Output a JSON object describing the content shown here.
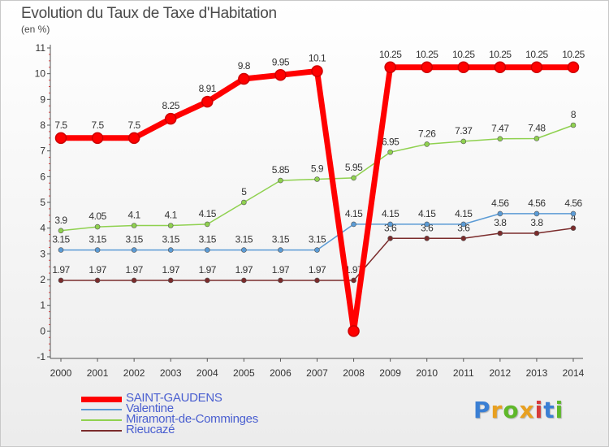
{
  "title": "Evolution du Taux de Taxe d'Habitation",
  "subtitle": "(en %)",
  "logo": {
    "text": "Proxiti",
    "colors": [
      "#3a7fd4",
      "#e8a020",
      "#5fb82a",
      "#e8a020",
      "#d63a3a",
      "#3a7fd4",
      "#5fb82a"
    ]
  },
  "chart_data": {
    "type": "line",
    "title": "Evolution du Taux de Taxe d'Habitation",
    "ylabel": "(en %)",
    "xlabel": "",
    "x": [
      2000,
      2001,
      2002,
      2003,
      2004,
      2005,
      2006,
      2007,
      2008,
      2009,
      2010,
      2011,
      2012,
      2013,
      2014
    ],
    "ylim": [
      -1,
      11
    ],
    "yticks": [
      -1,
      0,
      1,
      2,
      3,
      4,
      5,
      6,
      7,
      8,
      9,
      10,
      11
    ],
    "grid": false,
    "legend": "bottom-left",
    "series": [
      {
        "name": "SAINT-GAUDENS",
        "color": "#ff0000",
        "values": [
          7.5,
          7.5,
          7.5,
          8.25,
          8.91,
          9.8,
          9.95,
          10.1,
          0,
          10.25,
          10.25,
          10.25,
          10.25,
          10.25,
          10.25
        ],
        "labels": [
          "7.5",
          "7.5",
          "7.5",
          "8.25",
          "8.91",
          "9.8",
          "9.95",
          "10.1",
          "",
          "10.25",
          "10.25",
          "10.25",
          "10.25",
          "10.25",
          "10.25"
        ]
      },
      {
        "name": "Valentine",
        "color": "#5b9bd5",
        "values": [
          3.15,
          3.15,
          3.15,
          3.15,
          3.15,
          3.15,
          3.15,
          3.15,
          4.15,
          4.15,
          4.15,
          4.15,
          4.56,
          4.56,
          4.56
        ],
        "labels": [
          "3.15",
          "3.15",
          "3.15",
          "3.15",
          "3.15",
          "3.15",
          "3.15",
          "3.15",
          "4.15",
          "4.15",
          "4.15",
          "4.15",
          "4.56",
          "4.56",
          "4.56"
        ]
      },
      {
        "name": "Miramont-de-Comminges",
        "color": "#8fd14f",
        "values": [
          3.9,
          4.05,
          4.1,
          4.1,
          4.15,
          5,
          5.85,
          5.9,
          5.95,
          6.95,
          7.26,
          7.37,
          7.47,
          7.48,
          8
        ],
        "labels": [
          "3.9",
          "4.05",
          "4.1",
          "4.1",
          "4.15",
          "5",
          "5.85",
          "5.9",
          "5.95",
          "6.95",
          "7.26",
          "7.37",
          "7.47",
          "7.48",
          "8"
        ]
      },
      {
        "name": "Rieucazé",
        "color": "#7b2c2c",
        "values": [
          1.97,
          1.97,
          1.97,
          1.97,
          1.97,
          1.97,
          1.97,
          1.97,
          1.97,
          3.6,
          3.6,
          3.6,
          3.8,
          3.8,
          4
        ],
        "labels": [
          "1.97",
          "1.97",
          "1.97",
          "1.97",
          "1.97",
          "1.97",
          "1.97",
          "1.97",
          "1.97",
          "3.6",
          "3.6",
          "3.6",
          "3.8",
          "3.8",
          "4"
        ]
      }
    ]
  }
}
